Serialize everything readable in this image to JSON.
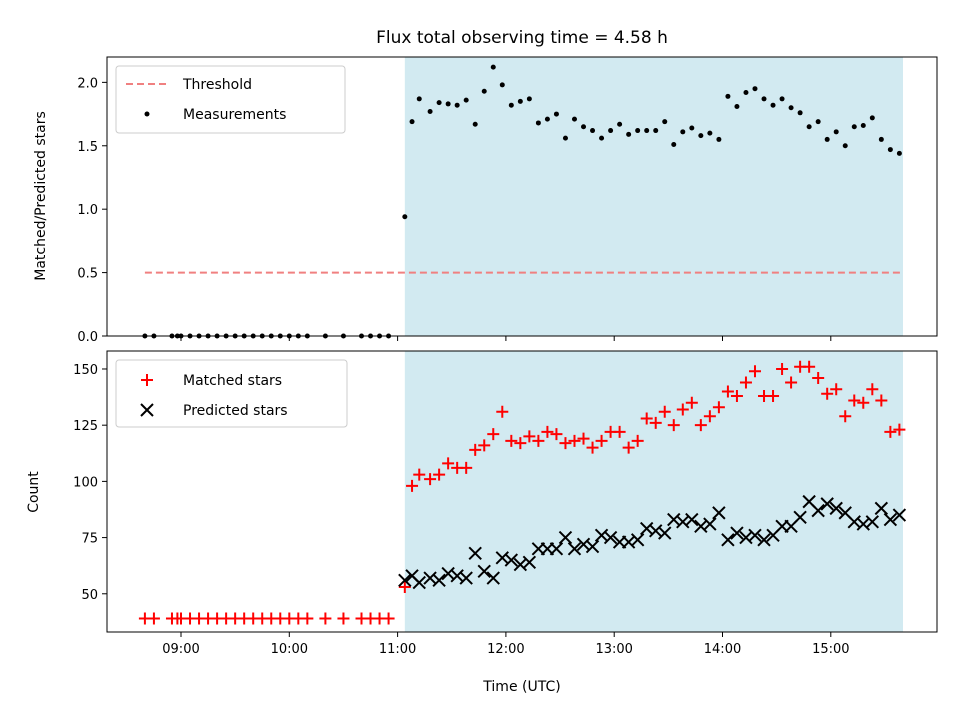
{
  "chart_data": [
    {
      "type": "scatter",
      "title": "Flux total observing time = 4.58 h",
      "xlabel": "",
      "ylabel": "Matched/Predicted stars",
      "ylim": [
        0,
        2.2
      ],
      "yticks": [
        "0.0",
        "0.5",
        "1.0",
        "1.5",
        "2.0"
      ],
      "legend_placement": "top-left",
      "shaded_region": [
        "11:04",
        "15:40"
      ],
      "threshold": {
        "name": "Threshold",
        "value": 0.5,
        "x_start": "08:40",
        "x_end": "15:40",
        "color": "#f08080"
      },
      "series": [
        {
          "name": "Measurements",
          "color": "#000000",
          "x": [
            "08:40",
            "08:45",
            "08:55",
            "08:58",
            "09:00",
            "09:05",
            "09:10",
            "09:15",
            "09:20",
            "09:25",
            "09:30",
            "09:35",
            "09:40",
            "09:45",
            "09:50",
            "09:55",
            "10:00",
            "10:05",
            "10:10",
            "10:20",
            "10:30",
            "10:40",
            "10:45",
            "10:50",
            "10:55",
            "11:04",
            "11:08",
            "11:12",
            "11:18",
            "11:23",
            "11:28",
            "11:33",
            "11:38",
            "11:43",
            "11:48",
            "11:53",
            "11:58",
            "12:03",
            "12:08",
            "12:13",
            "12:18",
            "12:23",
            "12:28",
            "12:33",
            "12:38",
            "12:43",
            "12:48",
            "12:53",
            "12:58",
            "13:03",
            "13:08",
            "13:13",
            "13:18",
            "13:23",
            "13:28",
            "13:33",
            "13:38",
            "13:43",
            "13:48",
            "13:53",
            "13:58",
            "14:03",
            "14:08",
            "14:13",
            "14:18",
            "14:23",
            "14:28",
            "14:33",
            "14:38",
            "14:43",
            "14:48",
            "14:53",
            "14:58",
            "15:03",
            "15:08",
            "15:13",
            "15:18",
            "15:23",
            "15:28",
            "15:33",
            "15:38"
          ],
          "y": [
            0,
            0,
            0,
            0,
            0,
            0,
            0,
            0,
            0,
            0,
            0,
            0,
            0,
            0,
            0,
            0,
            0,
            0,
            0,
            0,
            0,
            0,
            0,
            0,
            0,
            0.94,
            1.69,
            1.87,
            1.77,
            1.84,
            1.83,
            1.82,
            1.86,
            1.67,
            1.93,
            2.12,
            1.98,
            1.82,
            1.85,
            1.87,
            1.68,
            1.71,
            1.75,
            1.56,
            1.71,
            1.65,
            1.62,
            1.56,
            1.62,
            1.67,
            1.59,
            1.62,
            1.62,
            1.62,
            1.69,
            1.51,
            1.61,
            1.64,
            1.58,
            1.6,
            1.55,
            1.89,
            1.81,
            1.92,
            1.95,
            1.87,
            1.82,
            1.87,
            1.8,
            1.76,
            1.65,
            1.69,
            1.55,
            1.61,
            1.5,
            1.65,
            1.66,
            1.72,
            1.55,
            1.47,
            1.44
          ]
        }
      ]
    },
    {
      "type": "scatter",
      "title": "",
      "xlabel": "Time (UTC)",
      "ylabel": "Count",
      "ylim": [
        33,
        158
      ],
      "yticks": [
        "50",
        "75",
        "100",
        "125",
        "150"
      ],
      "xticks": [
        "09:00",
        "10:00",
        "11:00",
        "12:00",
        "13:00",
        "14:00",
        "15:00"
      ],
      "legend_placement": "top-left",
      "shaded_region": [
        "11:04",
        "15:40"
      ],
      "series": [
        {
          "name": "Matched stars",
          "color": "#ff0000",
          "marker": "+",
          "x": [
            "08:40",
            "08:45",
            "08:55",
            "08:58",
            "09:00",
            "09:05",
            "09:10",
            "09:15",
            "09:20",
            "09:25",
            "09:30",
            "09:35",
            "09:40",
            "09:45",
            "09:50",
            "09:55",
            "10:00",
            "10:05",
            "10:10",
            "10:20",
            "10:30",
            "10:40",
            "10:45",
            "10:50",
            "10:55",
            "11:04",
            "11:08",
            "11:12",
            "11:18",
            "11:23",
            "11:28",
            "11:33",
            "11:38",
            "11:43",
            "11:48",
            "11:53",
            "11:58",
            "12:03",
            "12:08",
            "12:13",
            "12:18",
            "12:23",
            "12:28",
            "12:33",
            "12:38",
            "12:43",
            "12:48",
            "12:53",
            "12:58",
            "13:03",
            "13:08",
            "13:13",
            "13:18",
            "13:23",
            "13:28",
            "13:33",
            "13:38",
            "13:43",
            "13:48",
            "13:53",
            "13:58",
            "14:03",
            "14:08",
            "14:13",
            "14:18",
            "14:23",
            "14:28",
            "14:33",
            "14:38",
            "14:43",
            "14:48",
            "14:53",
            "14:58",
            "15:03",
            "15:08",
            "15:13",
            "15:18",
            "15:23",
            "15:28",
            "15:33",
            "15:38"
          ],
          "y": [
            39,
            39,
            39,
            39,
            39,
            39,
            39,
            39,
            39,
            39,
            39,
            39,
            39,
            39,
            39,
            39,
            39,
            39,
            39,
            39,
            39,
            39,
            39,
            39,
            39,
            53,
            98,
            103,
            101,
            103,
            108,
            106,
            106,
            114,
            116,
            121,
            131,
            118,
            117,
            120,
            118,
            122,
            121,
            117,
            118,
            119,
            115,
            118,
            122,
            122,
            115,
            118,
            128,
            126,
            131,
            125,
            132,
            135,
            125,
            129,
            133,
            140,
            138,
            144,
            149,
            138,
            138,
            150,
            144,
            151,
            151,
            146,
            139,
            141,
            129,
            136,
            135,
            141,
            136,
            122,
            123
          ]
        },
        {
          "name": "Predicted stars",
          "color": "#000000",
          "marker": "x",
          "x": [
            "11:04",
            "11:08",
            "11:12",
            "11:18",
            "11:23",
            "11:28",
            "11:33",
            "11:38",
            "11:43",
            "11:48",
            "11:53",
            "11:58",
            "12:03",
            "12:08",
            "12:13",
            "12:18",
            "12:23",
            "12:28",
            "12:33",
            "12:38",
            "12:43",
            "12:48",
            "12:53",
            "12:58",
            "13:03",
            "13:08",
            "13:13",
            "13:18",
            "13:23",
            "13:28",
            "13:33",
            "13:38",
            "13:43",
            "13:48",
            "13:53",
            "13:58",
            "14:03",
            "14:08",
            "14:13",
            "14:18",
            "14:23",
            "14:28",
            "14:33",
            "14:38",
            "14:43",
            "14:48",
            "14:53",
            "14:58",
            "15:03",
            "15:08",
            "15:13",
            "15:18",
            "15:23",
            "15:28",
            "15:33",
            "15:38"
          ],
          "y": [
            56,
            58,
            55,
            57,
            56,
            59,
            58,
            57,
            68,
            60,
            57,
            66,
            65,
            63,
            64,
            70,
            70,
            70,
            75,
            70,
            72,
            71,
            76,
            75,
            73,
            73,
            74,
            79,
            78,
            77,
            83,
            82,
            83,
            80,
            81,
            86,
            74,
            77,
            75,
            76,
            74,
            76,
            80,
            80,
            84,
            91,
            87,
            90,
            88,
            86,
            82,
            81,
            82,
            88,
            83,
            85
          ]
        }
      ]
    }
  ]
}
